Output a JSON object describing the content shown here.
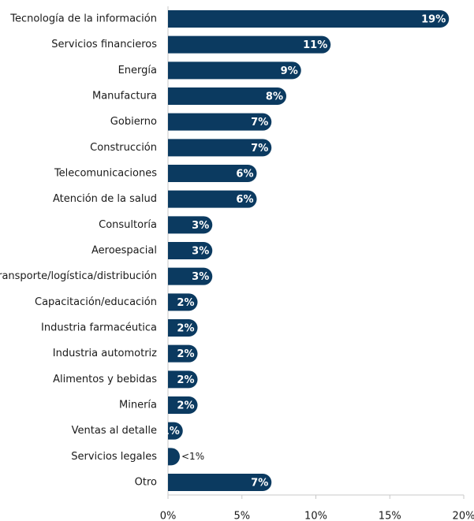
{
  "chart_data": {
    "type": "bar",
    "orientation": "horizontal",
    "categories": [
      "Tecnología de la información",
      "Servicios financieros",
      "Energía",
      "Manufactura",
      "Gobierno",
      "Construcción",
      "Telecomunicaciones",
      "Atención de la salud",
      "Consultoría",
      "Aeroespacial",
      "Transporte/logística/distribución",
      "Capacitación/educación",
      "Industria farmacéutica",
      "Industria automotriz",
      "Alimentos y bebidas",
      "Minería",
      "Ventas al detalle",
      "Servicios legales",
      "Otro"
    ],
    "values": [
      19,
      11,
      9,
      8,
      7,
      7,
      6,
      6,
      3,
      3,
      3,
      2,
      2,
      2,
      2,
      2,
      1,
      0.8,
      7
    ],
    "value_labels": [
      "19%",
      "11%",
      "9%",
      "8%",
      "7%",
      "7%",
      "6%",
      "6%",
      "3%",
      "3%",
      "3%",
      "2%",
      "2%",
      "2%",
      "2%",
      "2%",
      "1%",
      "<1%",
      "7%"
    ],
    "color": "#0b3a60",
    "xlim": [
      0,
      20
    ],
    "xticks": [
      {
        "value": 0,
        "label": "0%"
      },
      {
        "value": 5,
        "label": "5%"
      },
      {
        "value": 10,
        "label": "10%"
      },
      {
        "value": 15,
        "label": "15%"
      },
      {
        "value": 20,
        "label": "20%"
      }
    ]
  }
}
